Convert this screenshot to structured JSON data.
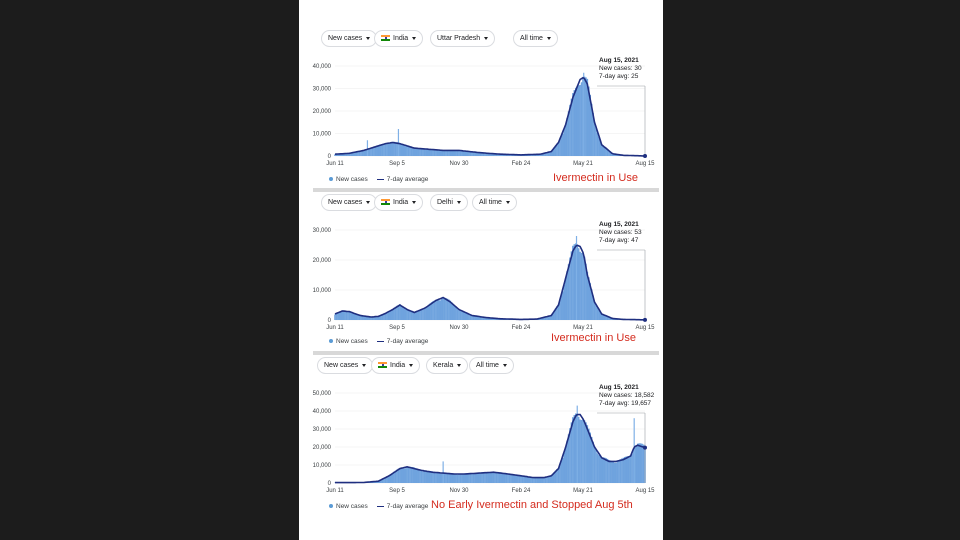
{
  "legend": {
    "new_cases": "New cases",
    "avg": "7-day average"
  },
  "panels": [
    {
      "controls": {
        "metric": "New cases",
        "country": "India",
        "region": "Uttar Pradesh",
        "range": "All time"
      },
      "annotation": "Ivermectin in Use",
      "tooltip": {
        "date": "Aug 15, 2021",
        "cases": "New cases: 30",
        "avg": "7-day avg: 25"
      },
      "chart_data": {
        "type": "area",
        "x_ticks": [
          "Jun 11",
          "Sep 5",
          "Nov 30",
          "Feb 24",
          "May 21",
          "Aug 15"
        ],
        "y_ticks": [
          "40,000",
          "30,000",
          "20,000",
          "10,000",
          "0"
        ],
        "ylim": [
          0,
          40000
        ],
        "tick_days": [
          0,
          86,
          172,
          258,
          344,
          430
        ],
        "series": [
          {
            "name": "7-day average",
            "days": [
              0,
              20,
              40,
              60,
              70,
              80,
              90,
              100,
              110,
              130,
              150,
              172,
              200,
              230,
              258,
              285,
              300,
              310,
              320,
              330,
              340,
              345,
              350,
              360,
              370,
              385,
              400,
              430
            ],
            "values": [
              800,
              1200,
              2500,
              4500,
              5500,
              6000,
              5500,
              4500,
              3500,
              3000,
              2500,
              2500,
              1500,
              800,
              500,
              800,
              2000,
              6000,
              14000,
              26000,
              34000,
              35000,
              32000,
              15000,
              5000,
              1000,
              300,
              25
            ]
          }
        ],
        "spikes": [
          {
            "day": 45,
            "value": 7000
          },
          {
            "day": 88,
            "value": 12000
          },
          {
            "day": 345,
            "value": 37000
          }
        ]
      }
    },
    {
      "controls": {
        "metric": "New cases",
        "country": "India",
        "region": "Delhi",
        "range": "All time"
      },
      "annotation": "Ivermectin in Use",
      "tooltip": {
        "date": "Aug 15, 2021",
        "cases": "New cases: 53",
        "avg": "7-day avg: 47"
      },
      "chart_data": {
        "type": "area",
        "x_ticks": [
          "Jun 11",
          "Sep 5",
          "Nov 30",
          "Feb 24",
          "May 21",
          "Aug 15"
        ],
        "y_ticks": [
          "30,000",
          "20,000",
          "10,000",
          "0"
        ],
        "ylim": [
          0,
          30000
        ],
        "tick_days": [
          0,
          86,
          172,
          258,
          344,
          430
        ],
        "series": [
          {
            "name": "7-day average",
            "days": [
              0,
              10,
              20,
              35,
              50,
              60,
              70,
              80,
              90,
              100,
              110,
              125,
              140,
              150,
              160,
              172,
              190,
              210,
              230,
              258,
              280,
              300,
              310,
              320,
              330,
              335,
              340,
              345,
              350,
              360,
              370,
              385,
              400,
              430
            ],
            "values": [
              2000,
              3000,
              2800,
              1500,
              1000,
              1200,
              2200,
              3500,
              5000,
              3500,
              2500,
              4000,
              6500,
              7500,
              6000,
              3500,
              1500,
              800,
              400,
              200,
              300,
              1500,
              5000,
              14000,
              23000,
              25000,
              24500,
              22000,
              15000,
              6000,
              2000,
              500,
              200,
              47
            ]
          }
        ],
        "spikes": [
          {
            "day": 335,
            "value": 28000
          }
        ]
      }
    },
    {
      "controls": {
        "metric": "New cases",
        "country": "India",
        "region": "Kerala",
        "range": "All time"
      },
      "annotation": "No Early Ivermectin and Stopped Aug 5th",
      "tooltip": {
        "date": "Aug 15, 2021",
        "cases": "New cases: 18,582",
        "avg": "7-day avg: 19,657"
      },
      "chart_data": {
        "type": "area",
        "x_ticks": [
          "Jun 11",
          "Sep 5",
          "Nov 30",
          "Feb 24",
          "May 21",
          "Aug 15"
        ],
        "y_ticks": [
          "50,000",
          "40,000",
          "30,000",
          "20,000",
          "10,000",
          "0"
        ],
        "ylim": [
          0,
          50000
        ],
        "tick_days": [
          0,
          86,
          172,
          258,
          344,
          430
        ],
        "series": [
          {
            "name": "7-day average",
            "days": [
              0,
              20,
              40,
              60,
              75,
              90,
              100,
              110,
              120,
              135,
              150,
              165,
              180,
              200,
              220,
              240,
              258,
              275,
              290,
              300,
              310,
              320,
              330,
              335,
              340,
              345,
              350,
              360,
              370,
              380,
              390,
              400,
              410,
              415,
              420,
              430
            ],
            "values": [
              200,
              200,
              300,
              1000,
              4000,
              8000,
              9000,
              8000,
              7000,
              6000,
              5500,
              5000,
              5000,
              5500,
              6000,
              5000,
              4000,
              3000,
              3000,
              4000,
              8000,
              20000,
              34000,
              38000,
              38000,
              35000,
              30000,
              20000,
              14000,
              12000,
              12000,
              13000,
              15000,
              20000,
              21000,
              19657
            ]
          }
        ],
        "spikes": [
          {
            "day": 150,
            "value": 12000
          },
          {
            "day": 336,
            "value": 43000
          },
          {
            "day": 415,
            "value": 36000
          }
        ]
      }
    }
  ]
}
